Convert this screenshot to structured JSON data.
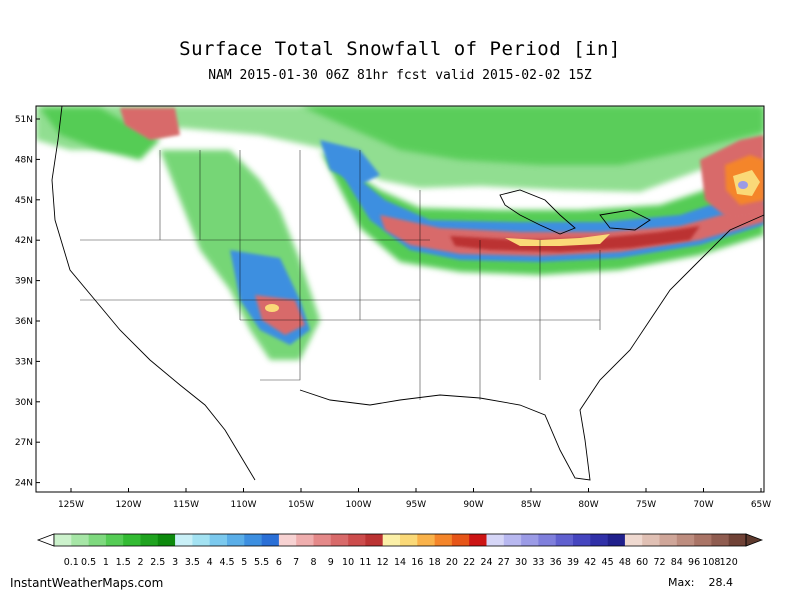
{
  "title": "Surface Total Snowfall of Period [in]",
  "subtitle": "NAM 2015-01-30 06Z 81hr fcst valid 2015-02-02 15Z",
  "map": {
    "lat_labels": [
      "51N",
      "48N",
      "45N",
      "42N",
      "39N",
      "36N",
      "33N",
      "30N",
      "27N",
      "24N"
    ],
    "lon_labels": [
      "125W",
      "120W",
      "115W",
      "110W",
      "105W",
      "100W",
      "95W",
      "90W",
      "85W",
      "80W",
      "75W",
      "70W",
      "65W"
    ]
  },
  "color_scale": {
    "labels": [
      "0.1",
      "0.5",
      "1",
      "1.5",
      "2",
      "2.5",
      "3",
      "3.5",
      "4",
      "4.5",
      "5",
      "5.5",
      "6",
      "7",
      "8",
      "9",
      "10",
      "11",
      "12",
      "14",
      "16",
      "18",
      "20",
      "22",
      "24",
      "27",
      "30",
      "33",
      "36",
      "39",
      "42",
      "45",
      "48",
      "60",
      "72",
      "84",
      "96",
      "108",
      "120"
    ],
    "colors": [
      "#ccf2cc",
      "#a6e6a6",
      "#7ed97e",
      "#55cc55",
      "#33bb33",
      "#1fa31f",
      "#0d8a0d",
      "#c9f0f7",
      "#a3e2f2",
      "#7bc9ee",
      "#5aaee8",
      "#3d8fe0",
      "#2a6fd6",
      "#f7d2d2",
      "#efaeae",
      "#e48989",
      "#d86a6a",
      "#cc4c4c",
      "#bb3333",
      "#fbf0a8",
      "#fad978",
      "#f9b24a",
      "#f4852a",
      "#e65518",
      "#cc1414",
      "#d6d6f7",
      "#b8b8f0",
      "#9b9be6",
      "#7f7fdc",
      "#6060cf",
      "#4545bf",
      "#3030a8",
      "#20208c",
      "#efd9d0",
      "#e0c0b4",
      "#cfa699",
      "#bd8d7f",
      "#a97466",
      "#8f5c50",
      "#704236"
    ]
  },
  "footer": {
    "site": "InstantWeatherMaps.com",
    "max_label": "Max:",
    "max_value": "28.4"
  }
}
